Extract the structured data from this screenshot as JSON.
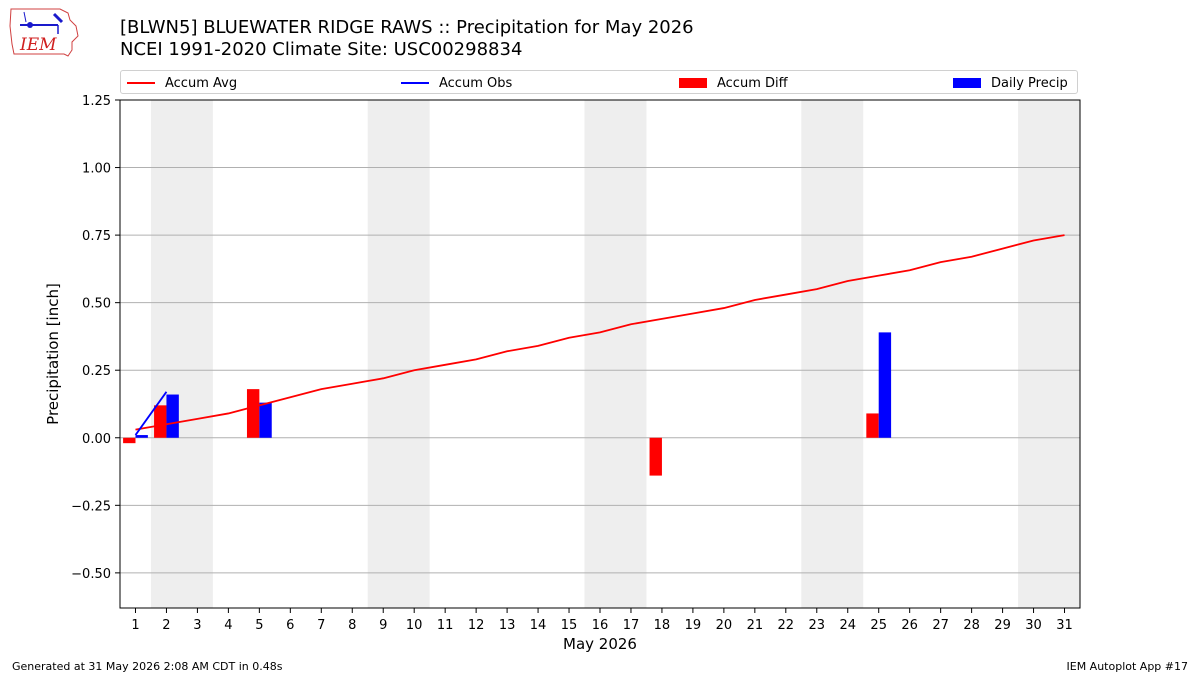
{
  "header": {
    "title_line1": "[BLWN5] BLUEWATER RIDGE RAWS :: Precipitation for May 2026",
    "title_line2": "NCEI 1991-2020 Climate Site: USC00298834",
    "logo_text": "IEM"
  },
  "footer": {
    "left": "Generated at 31 May 2026 2:08 AM CDT in 0.48s",
    "right": "IEM Autoplot App #17"
  },
  "colors": {
    "accum_avg": "#ff0000",
    "accum_obs": "#0000ff",
    "accum_diff": "#ff0000",
    "daily_precip": "#0000ff",
    "weekend_band": "#eeeeee",
    "grid": "#b0b0b0"
  },
  "chart_data": {
    "type": "bar",
    "xlabel": "May 2026",
    "ylabel": "Precipitation [inch]",
    "ylim": [
      -0.63,
      1.25
    ],
    "xlim": [
      0.5,
      31.5
    ],
    "yticks": [
      1.25,
      1.0,
      0.75,
      0.5,
      0.25,
      0.0,
      -0.25,
      -0.5
    ],
    "ytick_labels": [
      "1.25",
      "1.00",
      "0.75",
      "0.50",
      "0.25",
      "0.00",
      "−0.25",
      "−0.50"
    ],
    "grid": "horizontal",
    "legend_placement": "top",
    "days": [
      1,
      2,
      3,
      4,
      5,
      6,
      7,
      8,
      9,
      10,
      11,
      12,
      13,
      14,
      15,
      16,
      17,
      18,
      19,
      20,
      21,
      22,
      23,
      24,
      25,
      26,
      27,
      28,
      29,
      30,
      31
    ],
    "shaded_weekend_ranges": [
      [
        2,
        3
      ],
      [
        9,
        10
      ],
      [
        16,
        17
      ],
      [
        23,
        24
      ],
      [
        30,
        31
      ]
    ],
    "legend": [
      "Accum Avg",
      "Accum Obs",
      "Accum Diff",
      "Daily Precip"
    ],
    "series": [
      {
        "name": "Accum Avg",
        "kind": "line",
        "values": [
          0.03,
          0.05,
          0.07,
          0.09,
          0.12,
          0.15,
          0.18,
          0.2,
          0.22,
          0.25,
          0.27,
          0.29,
          0.32,
          0.34,
          0.37,
          0.39,
          0.42,
          0.44,
          0.46,
          0.48,
          0.51,
          0.53,
          0.55,
          0.58,
          0.6,
          0.62,
          0.65,
          0.67,
          0.7,
          0.73,
          0.75
        ]
      },
      {
        "name": "Accum Obs",
        "kind": "line",
        "days": [
          1,
          2
        ],
        "values": [
          0.01,
          0.17
        ]
      },
      {
        "name": "Accum Diff",
        "kind": "bar",
        "days": [
          1,
          2,
          5,
          18,
          25
        ],
        "values": [
          -0.02,
          0.12,
          0.18,
          -0.14,
          0.09
        ]
      },
      {
        "name": "Daily Precip",
        "kind": "bar",
        "days": [
          1,
          2,
          5,
          25
        ],
        "values": [
          0.01,
          0.16,
          0.13,
          0.39
        ]
      }
    ]
  }
}
